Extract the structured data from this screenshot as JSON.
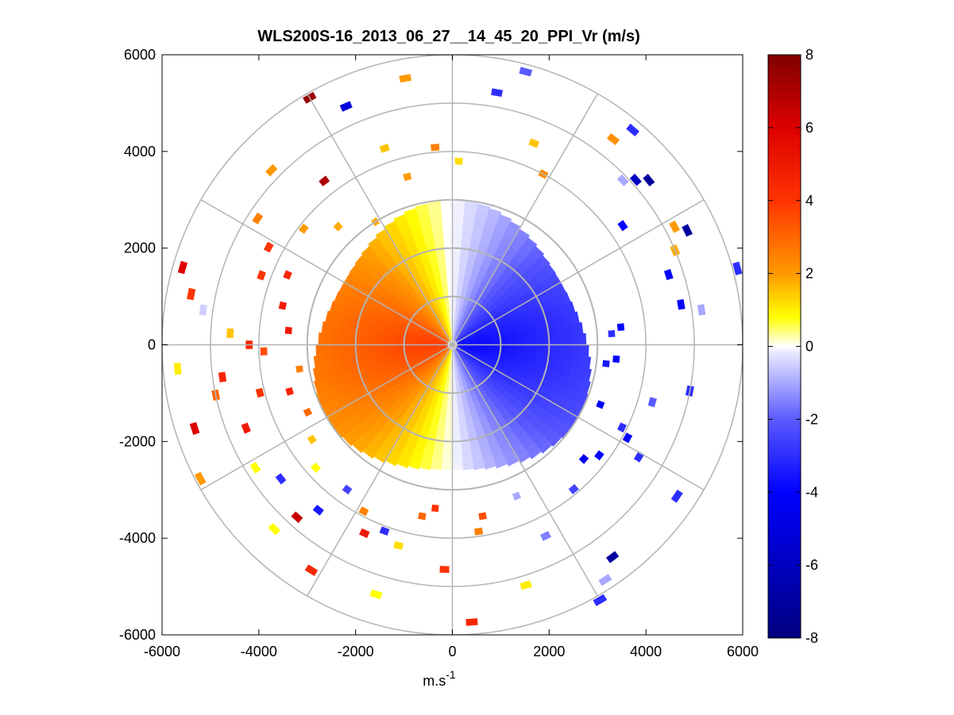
{
  "chart_data": {
    "type": "heatmap",
    "subtype": "polar-ppi",
    "title": "WLS200S-16_2013_06_27__14_45_20_PPI_Vr (m/s)",
    "xlabel": "m.s",
    "xlabel_superscript": "-1",
    "ylabel": "",
    "xlim": [
      -6000,
      6000
    ],
    "ylim": [
      -6000,
      6000
    ],
    "xticks": [
      -6000,
      -4000,
      -2000,
      0,
      2000,
      4000,
      6000
    ],
    "yticks": [
      -6000,
      -4000,
      -2000,
      0,
      2000,
      4000,
      6000
    ],
    "xtick_labels": [
      "-6000",
      "-4000",
      "-2000",
      "0",
      "2000",
      "4000",
      "6000"
    ],
    "ytick_labels": [
      "-6000",
      "-4000",
      "-2000",
      "0",
      "2000",
      "4000",
      "6000"
    ],
    "grid_rings_inner_m": [
      1000,
      2000,
      3000
    ],
    "grid_rings_outer_m": [
      4000,
      5000,
      6000
    ],
    "grid_spoke_step_deg": 30,
    "colorbar": {
      "min": -8,
      "max": 8,
      "ticks": [
        -8,
        -6,
        -4,
        -2,
        0,
        2,
        4,
        6,
        8
      ],
      "tick_labels": [
        "-8",
        "-6",
        "-4",
        "-2",
        "0",
        "2",
        "4",
        "6",
        "8"
      ],
      "stops": [
        {
          "v": -8,
          "c": "#000080"
        },
        {
          "v": -4,
          "c": "#0000ff"
        },
        {
          "v": -2,
          "c": "#5a5aff"
        },
        {
          "v": -0.2,
          "c": "#e6e6ff"
        },
        {
          "v": 0,
          "c": "#ffffff"
        },
        {
          "v": 0.2,
          "c": "#ffffc0"
        },
        {
          "v": 0.8,
          "c": "#ffff00"
        },
        {
          "v": 2,
          "c": "#ff9900"
        },
        {
          "v": 4,
          "c": "#ff3300"
        },
        {
          "v": 6,
          "c": "#dd0000"
        },
        {
          "v": 8,
          "c": "#800000"
        }
      ]
    },
    "field_model": {
      "range_max_m": 3000,
      "peak_speed_ms": 4.0,
      "wind_from_azimuth_deg": 90,
      "gap_azimuth_deg": [
        -3,
        0
      ],
      "range_step_m": 150,
      "azimuth_step_deg": 5
    },
    "scattered_gates": [
      {
        "az": 10,
        "r": 5300,
        "v": -3.0
      },
      {
        "az": 15,
        "r": 5850,
        "v": -2.0
      },
      {
        "az": 2,
        "r": 3800,
        "v": 1.2
      },
      {
        "az": 22,
        "r": 4500,
        "v": 1.5
      },
      {
        "az": 28,
        "r": 4000,
        "v": 2.2
      },
      {
        "az": 38,
        "r": 5400,
        "v": 2.2
      },
      {
        "az": 40,
        "r": 5800,
        "v": -3.0
      },
      {
        "az": 46,
        "r": 4900,
        "v": -1.0
      },
      {
        "az": 48,
        "r": 5100,
        "v": -6.0
      },
      {
        "az": 50,
        "r": 5300,
        "v": -7.0
      },
      {
        "az": 55,
        "r": 4300,
        "v": -4.0
      },
      {
        "az": 62,
        "r": 5200,
        "v": 2.0
      },
      {
        "az": 64,
        "r": 5400,
        "v": -7.0
      },
      {
        "az": 67,
        "r": 5000,
        "v": 1.8
      },
      {
        "az": 72,
        "r": 4700,
        "v": -4.0
      },
      {
        "az": 75,
        "r": 6100,
        "v": -3.0
      },
      {
        "az": 80,
        "r": 4800,
        "v": -4.0
      },
      {
        "az": 82,
        "r": 5200,
        "v": -1.0
      },
      {
        "az": 84,
        "r": 3500,
        "v": -4.0
      },
      {
        "az": 86,
        "r": 3300,
        "v": -3.0
      },
      {
        "az": 95,
        "r": 3400,
        "v": -4.0
      },
      {
        "az": 97,
        "r": 3200,
        "v": -3.5
      },
      {
        "az": 101,
        "r": 5000,
        "v": -3.0
      },
      {
        "az": 106,
        "r": 4300,
        "v": -2.0
      },
      {
        "az": 112,
        "r": 3300,
        "v": -4.0
      },
      {
        "az": 116,
        "r": 3900,
        "v": -3.0
      },
      {
        "az": 118,
        "r": 4100,
        "v": -4.0
      },
      {
        "az": 121,
        "r": 4500,
        "v": -3.0
      },
      {
        "az": 124,
        "r": 5600,
        "v": -3.0
      },
      {
        "az": 127,
        "r": 3800,
        "v": -4.0
      },
      {
        "az": 131,
        "r": 3600,
        "v": -4.5
      },
      {
        "az": 140,
        "r": 3900,
        "v": -2.5
      },
      {
        "az": 143,
        "r": 5500,
        "v": -7.0
      },
      {
        "az": 147,
        "r": 5800,
        "v": -1.0
      },
      {
        "az": 150,
        "r": 6100,
        "v": -3.0
      },
      {
        "az": 154,
        "r": 4400,
        "v": -1.5
      },
      {
        "az": 157,
        "r": 3400,
        "v": -1.0
      },
      {
        "az": 163,
        "r": 5200,
        "v": 1.0
      },
      {
        "az": 170,
        "r": 3600,
        "v": 3.5
      },
      {
        "az": 172,
        "r": 3900,
        "v": 2.5
      },
      {
        "az": 176,
        "r": 5750,
        "v": 4.5
      },
      {
        "az": 182,
        "r": 4650,
        "v": 4.0
      },
      {
        "az": 186,
        "r": 3400,
        "v": 4.0
      },
      {
        "az": 190,
        "r": 3600,
        "v": 3.0
      },
      {
        "az": 195,
        "r": 4300,
        "v": 1.2
      },
      {
        "az": 197,
        "r": 5400,
        "v": 0.8
      },
      {
        "az": 200,
        "r": 4100,
        "v": -3.0
      },
      {
        "az": 205,
        "r": 4300,
        "v": 5.0
      },
      {
        "az": 208,
        "r": 3900,
        "v": 2.5
      },
      {
        "az": 212,
        "r": 5500,
        "v": 4.5
      },
      {
        "az": 216,
        "r": 3700,
        "v": -2.5
      },
      {
        "az": 219,
        "r": 4400,
        "v": -3.5
      },
      {
        "az": 222,
        "r": 4800,
        "v": 6.5
      },
      {
        "az": 224,
        "r": 5300,
        "v": 0.8
      },
      {
        "az": 228,
        "r": 3800,
        "v": 0.8
      },
      {
        "az": 232,
        "r": 4500,
        "v": -3.0
      },
      {
        "az": 236,
        "r": 3500,
        "v": 1.5
      },
      {
        "az": 238,
        "r": 4800,
        "v": 0.8
      },
      {
        "az": 242,
        "r": 5900,
        "v": 2.0
      },
      {
        "az": 245,
        "r": 3300,
        "v": 3.0
      },
      {
        "az": 248,
        "r": 4600,
        "v": 5.0
      },
      {
        "az": 252,
        "r": 5600,
        "v": 6.0
      },
      {
        "az": 254,
        "r": 3500,
        "v": 4.5
      },
      {
        "az": 256,
        "r": 4100,
        "v": 4.0
      },
      {
        "az": 258,
        "r": 5000,
        "v": 3.0
      },
      {
        "az": 261,
        "r": 3200,
        "v": 2.5
      },
      {
        "az": 262,
        "r": 4800,
        "v": 4.5
      },
      {
        "az": 265,
        "r": 5700,
        "v": 1.0
      },
      {
        "az": 268,
        "r": 3900,
        "v": 3.5
      },
      {
        "az": 270,
        "r": 4200,
        "v": 4.5
      },
      {
        "az": 273,
        "r": 4600,
        "v": 1.5
      },
      {
        "az": 275,
        "r": 3400,
        "v": 5.0
      },
      {
        "az": 278,
        "r": 5200,
        "v": -0.5
      },
      {
        "az": 281,
        "r": 5500,
        "v": 4.0
      },
      {
        "az": 283,
        "r": 3600,
        "v": 5.0
      },
      {
        "az": 286,
        "r": 5800,
        "v": 6.0
      },
      {
        "az": 290,
        "r": 4200,
        "v": 4.0
      },
      {
        "az": 293,
        "r": 3700,
        "v": 4.5
      },
      {
        "az": 298,
        "r": 4300,
        "v": 4.0
      },
      {
        "az": 303,
        "r": 4800,
        "v": 2.5
      },
      {
        "az": 308,
        "r": 3900,
        "v": 2.0
      },
      {
        "az": 314,
        "r": 5200,
        "v": 2.0
      },
      {
        "az": 316,
        "r": 3400,
        "v": 1.8
      },
      {
        "az": 322,
        "r": 4300,
        "v": 7.0
      },
      {
        "az": 328,
        "r": 3000,
        "v": 1.8
      },
      {
        "az": 330,
        "r": 5900,
        "v": 7.5
      },
      {
        "az": 336,
        "r": 5400,
        "v": -5.0
      },
      {
        "az": 341,
        "r": 4300,
        "v": 1.5
      },
      {
        "az": 345,
        "r": 3600,
        "v": 2.0
      },
      {
        "az": 350,
        "r": 5600,
        "v": 2.0
      },
      {
        "az": 355,
        "r": 4100,
        "v": 2.5
      }
    ]
  }
}
